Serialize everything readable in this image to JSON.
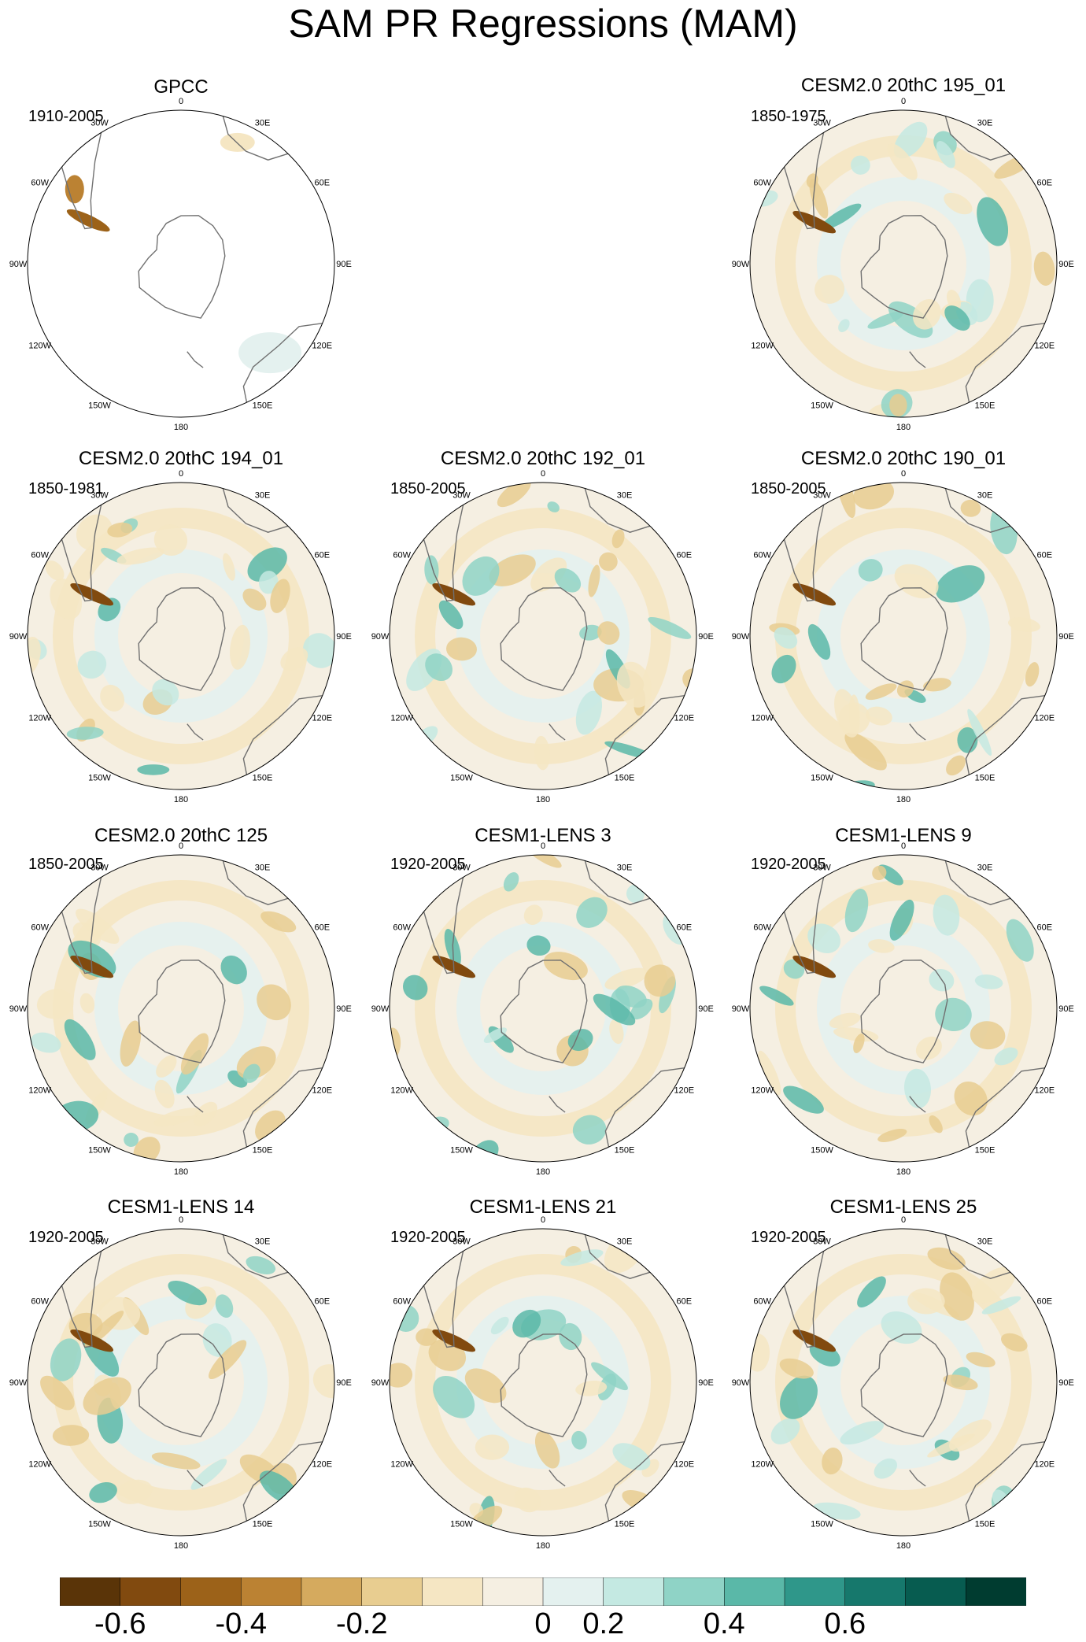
{
  "title": "SAM PR Regressions (MAM)",
  "lon_labels": [
    "0",
    "30E",
    "60E",
    "90E",
    "120E",
    "150E",
    "180",
    "150W",
    "120W",
    "90W",
    "60W",
    "30W"
  ],
  "panels": [
    {
      "title": "GPCC",
      "period": "1910-2005",
      "ocean_masked": true
    },
    {
      "title": "CESM2.0 20thC 195_01",
      "period": "1850-1975",
      "ocean_masked": false
    },
    {
      "title": "CESM2.0 20thC 194_01",
      "period": "1850-1981",
      "ocean_masked": false
    },
    {
      "title": "CESM2.0 20thC 192_01",
      "period": "1850-2005",
      "ocean_masked": false
    },
    {
      "title": "CESM2.0 20thC 190_01",
      "period": "1850-2005",
      "ocean_masked": false
    },
    {
      "title": "CESM2.0 20thC 125",
      "period": "1850-2005",
      "ocean_masked": false
    },
    {
      "title": "CESM1-LENS 3",
      "period": "1920-2005",
      "ocean_masked": false
    },
    {
      "title": "CESM1-LENS 9",
      "period": "1920-2005",
      "ocean_masked": false
    },
    {
      "title": "CESM1-LENS 14",
      "period": "1920-2005",
      "ocean_masked": false
    },
    {
      "title": "CESM1-LENS 21",
      "period": "1920-2005",
      "ocean_masked": false
    },
    {
      "title": "CESM1-LENS 25",
      "period": "1920-2005",
      "ocean_masked": false
    }
  ],
  "colorbar": {
    "colors": [
      "#5a3408",
      "#814a0f",
      "#9c6219",
      "#bb8233",
      "#d5aa5e",
      "#e8cd90",
      "#f5e6c3",
      "#f5efe2",
      "#e4f1ef",
      "#c4e9e2",
      "#8fd3c6",
      "#5ab8a8",
      "#2f978a",
      "#16786c",
      "#075c50",
      "#003c30"
    ],
    "labels": [
      "-0.6",
      "-0.4",
      "-0.2",
      "0",
      "0.2",
      "0.4",
      "0.6"
    ]
  },
  "colors": {
    "coastline": "#707070",
    "map_border": "#000000"
  }
}
